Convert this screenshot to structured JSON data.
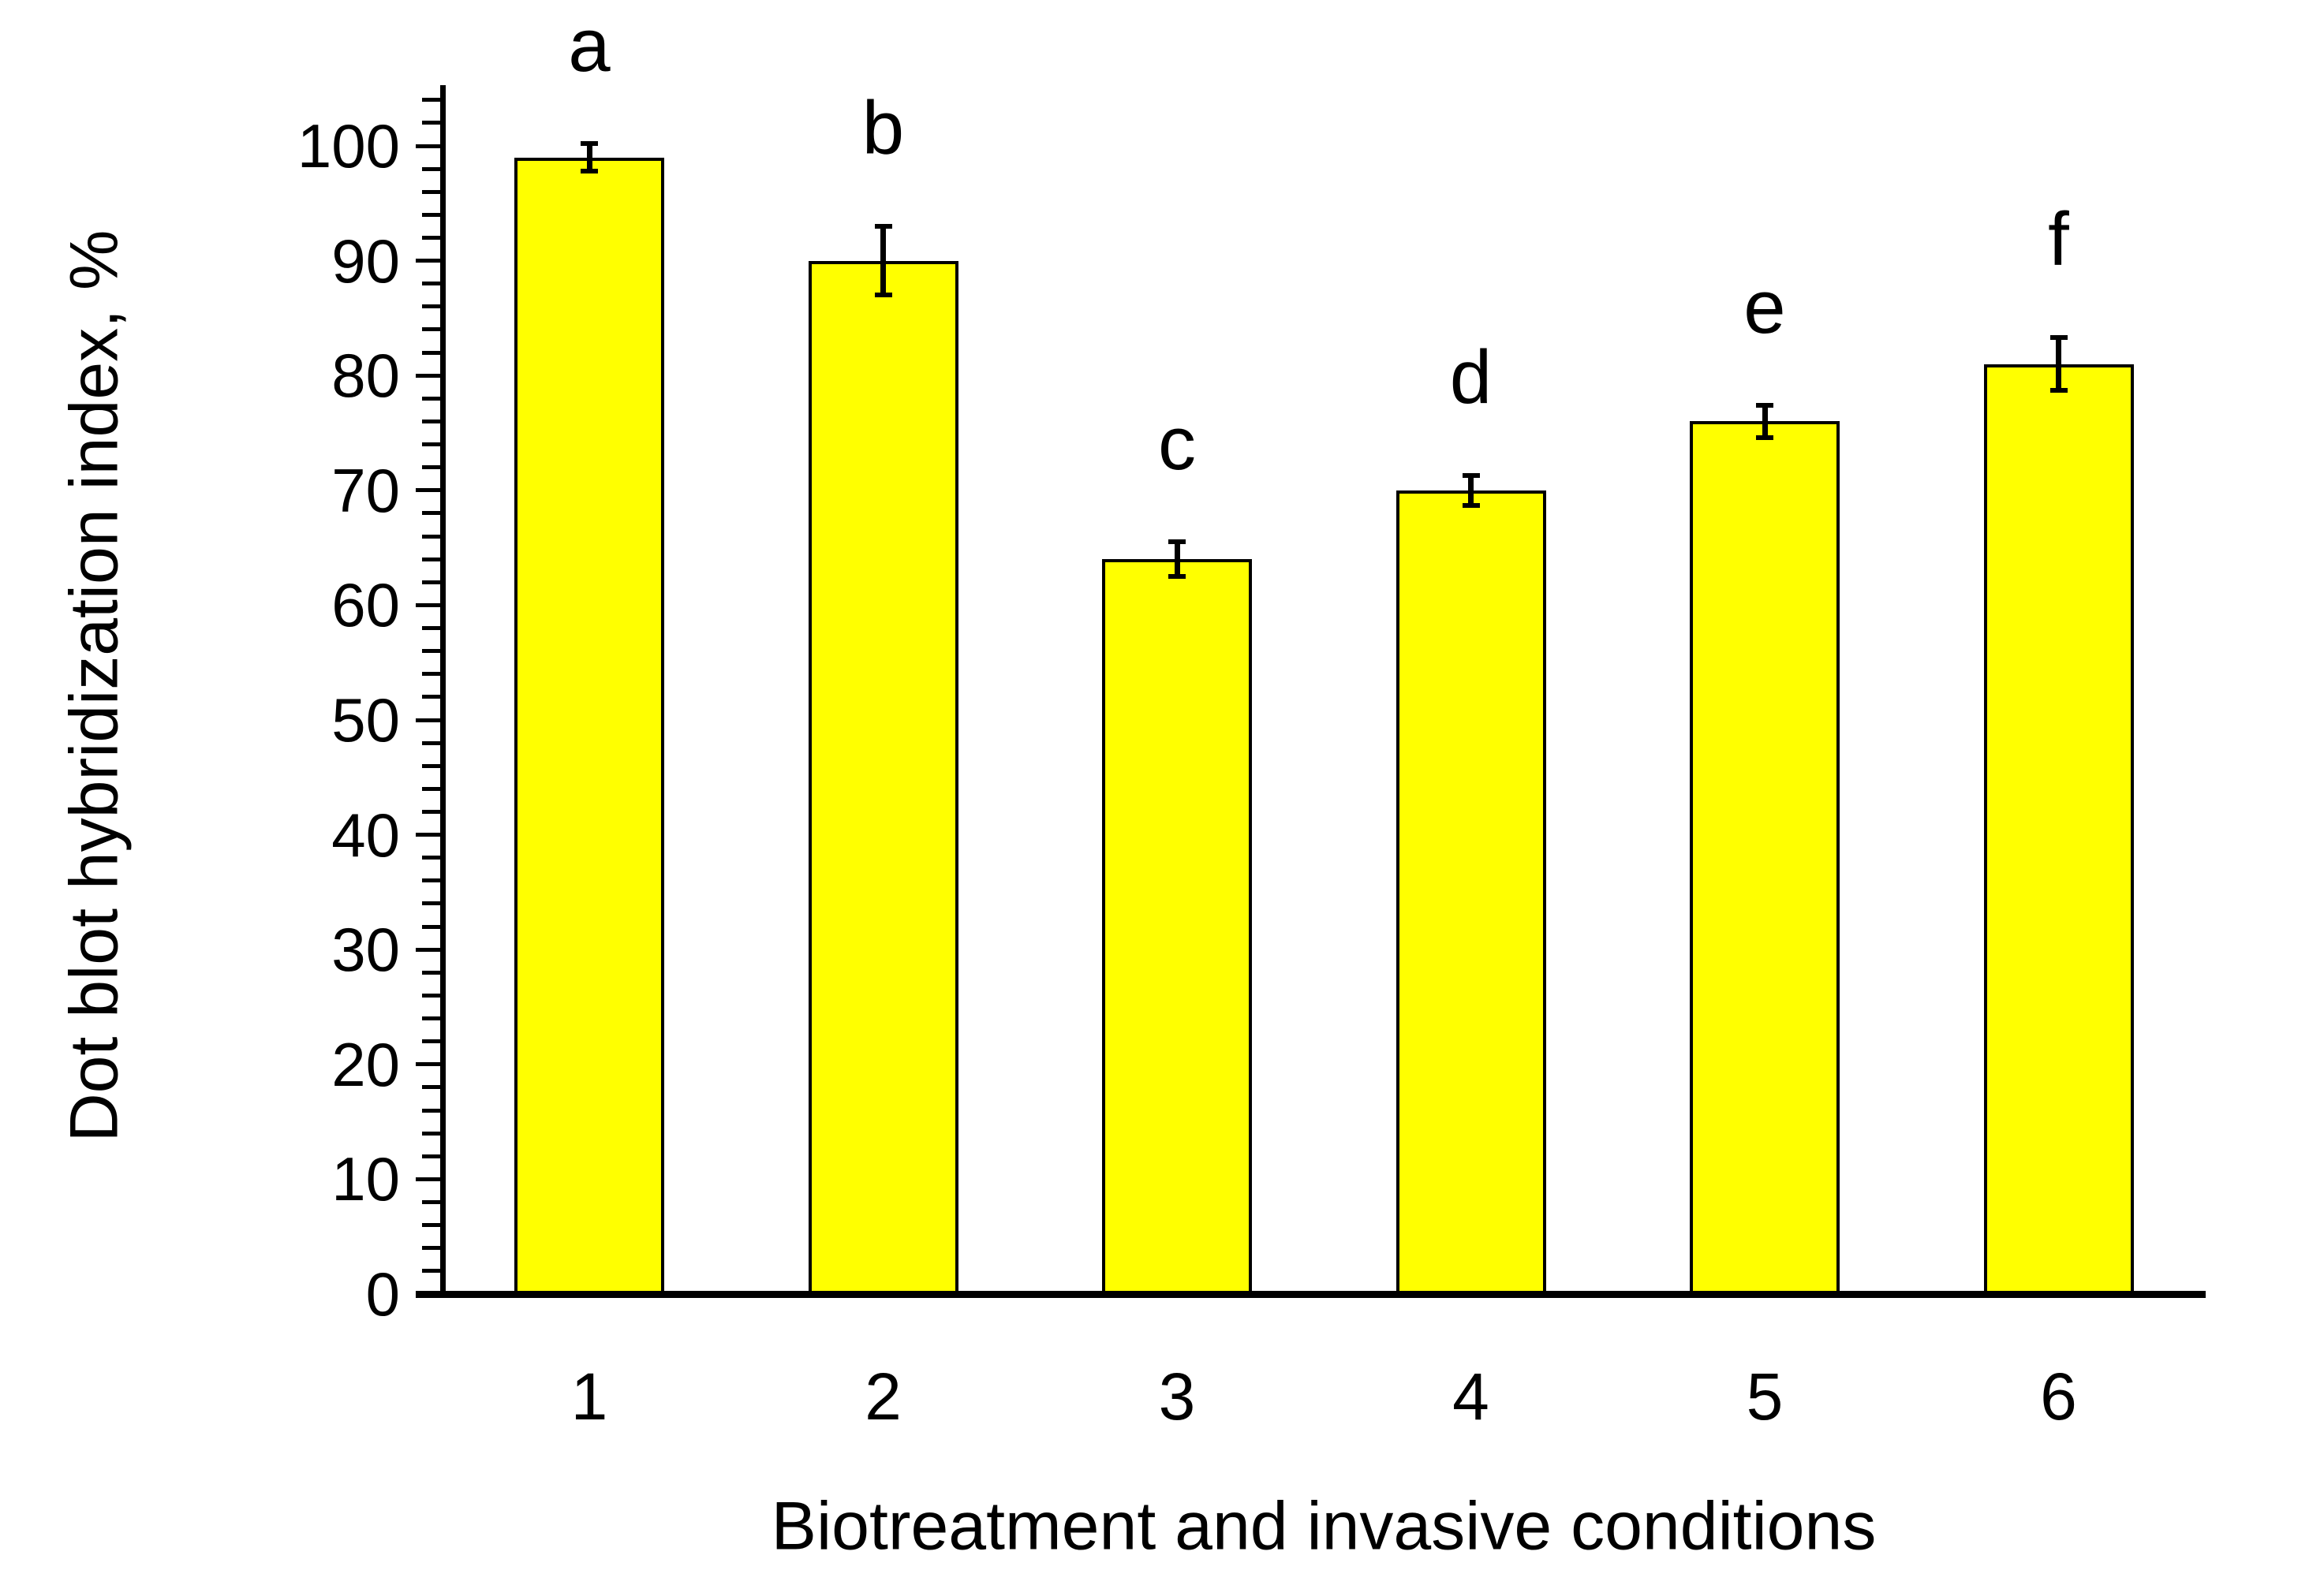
{
  "chart_data": {
    "type": "bar",
    "title": "",
    "xlabel": "Biotreatment and invasive conditions",
    "ylabel": "Dot blot hybridization index, %",
    "categories": [
      "1",
      "2",
      "3",
      "4",
      "5",
      "6"
    ],
    "values": [
      99,
      90,
      64,
      70,
      76,
      81
    ],
    "error_bars": [
      1.2,
      3.0,
      1.5,
      1.3,
      1.4,
      2.3
    ],
    "bar_letters": [
      "a",
      "b",
      "c",
      "d",
      "e",
      "f"
    ],
    "ylim": [
      0,
      105
    ],
    "y_major_tick": 10,
    "y_minor_tick": 2,
    "y_tick_labels": [
      "0",
      "10",
      "20",
      "30",
      "40",
      "50",
      "60",
      "70",
      "80",
      "90",
      "100"
    ],
    "grid": false,
    "legend": "none",
    "colors": {
      "bar_fill": "#FFFF00",
      "bar_border": "#000000",
      "axis": "#000000",
      "text": "#000000"
    }
  }
}
